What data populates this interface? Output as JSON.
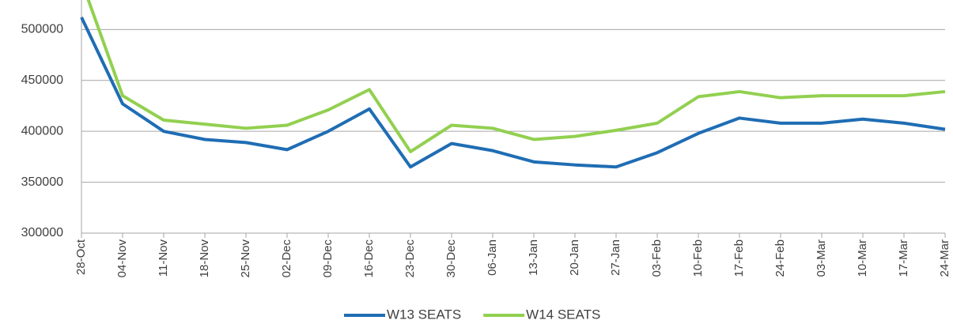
{
  "chart_data": {
    "type": "line",
    "categories": [
      "28-Oct",
      "04-Nov",
      "11-Nov",
      "18-Nov",
      "25-Nov",
      "02-Dec",
      "09-Dec",
      "16-Dec",
      "23-Dec",
      "30-Dec",
      "06-Jan",
      "13-Jan",
      "20-Jan",
      "27-Jan",
      "03-Feb",
      "10-Feb",
      "17-Feb",
      "24-Feb",
      "03-Mar",
      "10-Mar",
      "17-Mar",
      "24-Mar"
    ],
    "series": [
      {
        "name": "W13 SEATS",
        "color": "#1f6db4",
        "values": [
          512000,
          427000,
          400000,
          392000,
          389000,
          382000,
          400000,
          422000,
          365000,
          388000,
          381000,
          370000,
          367000,
          365000,
          379000,
          398000,
          413000,
          408000,
          408000,
          412000,
          408000,
          402000
        ]
      },
      {
        "name": "W14 SEATS",
        "color": "#92d050",
        "values": [
          548000,
          435000,
          411000,
          407000,
          403000,
          406000,
          421000,
          441000,
          380000,
          406000,
          403000,
          392000,
          395000,
          401000,
          408000,
          434000,
          439000,
          433000,
          435000,
          435000,
          435000,
          439000
        ]
      }
    ],
    "ylim": [
      300000,
      529000
    ],
    "yticks": [
      300000,
      350000,
      400000,
      450000,
      500000
    ],
    "grid": true,
    "legend": "bottom"
  }
}
